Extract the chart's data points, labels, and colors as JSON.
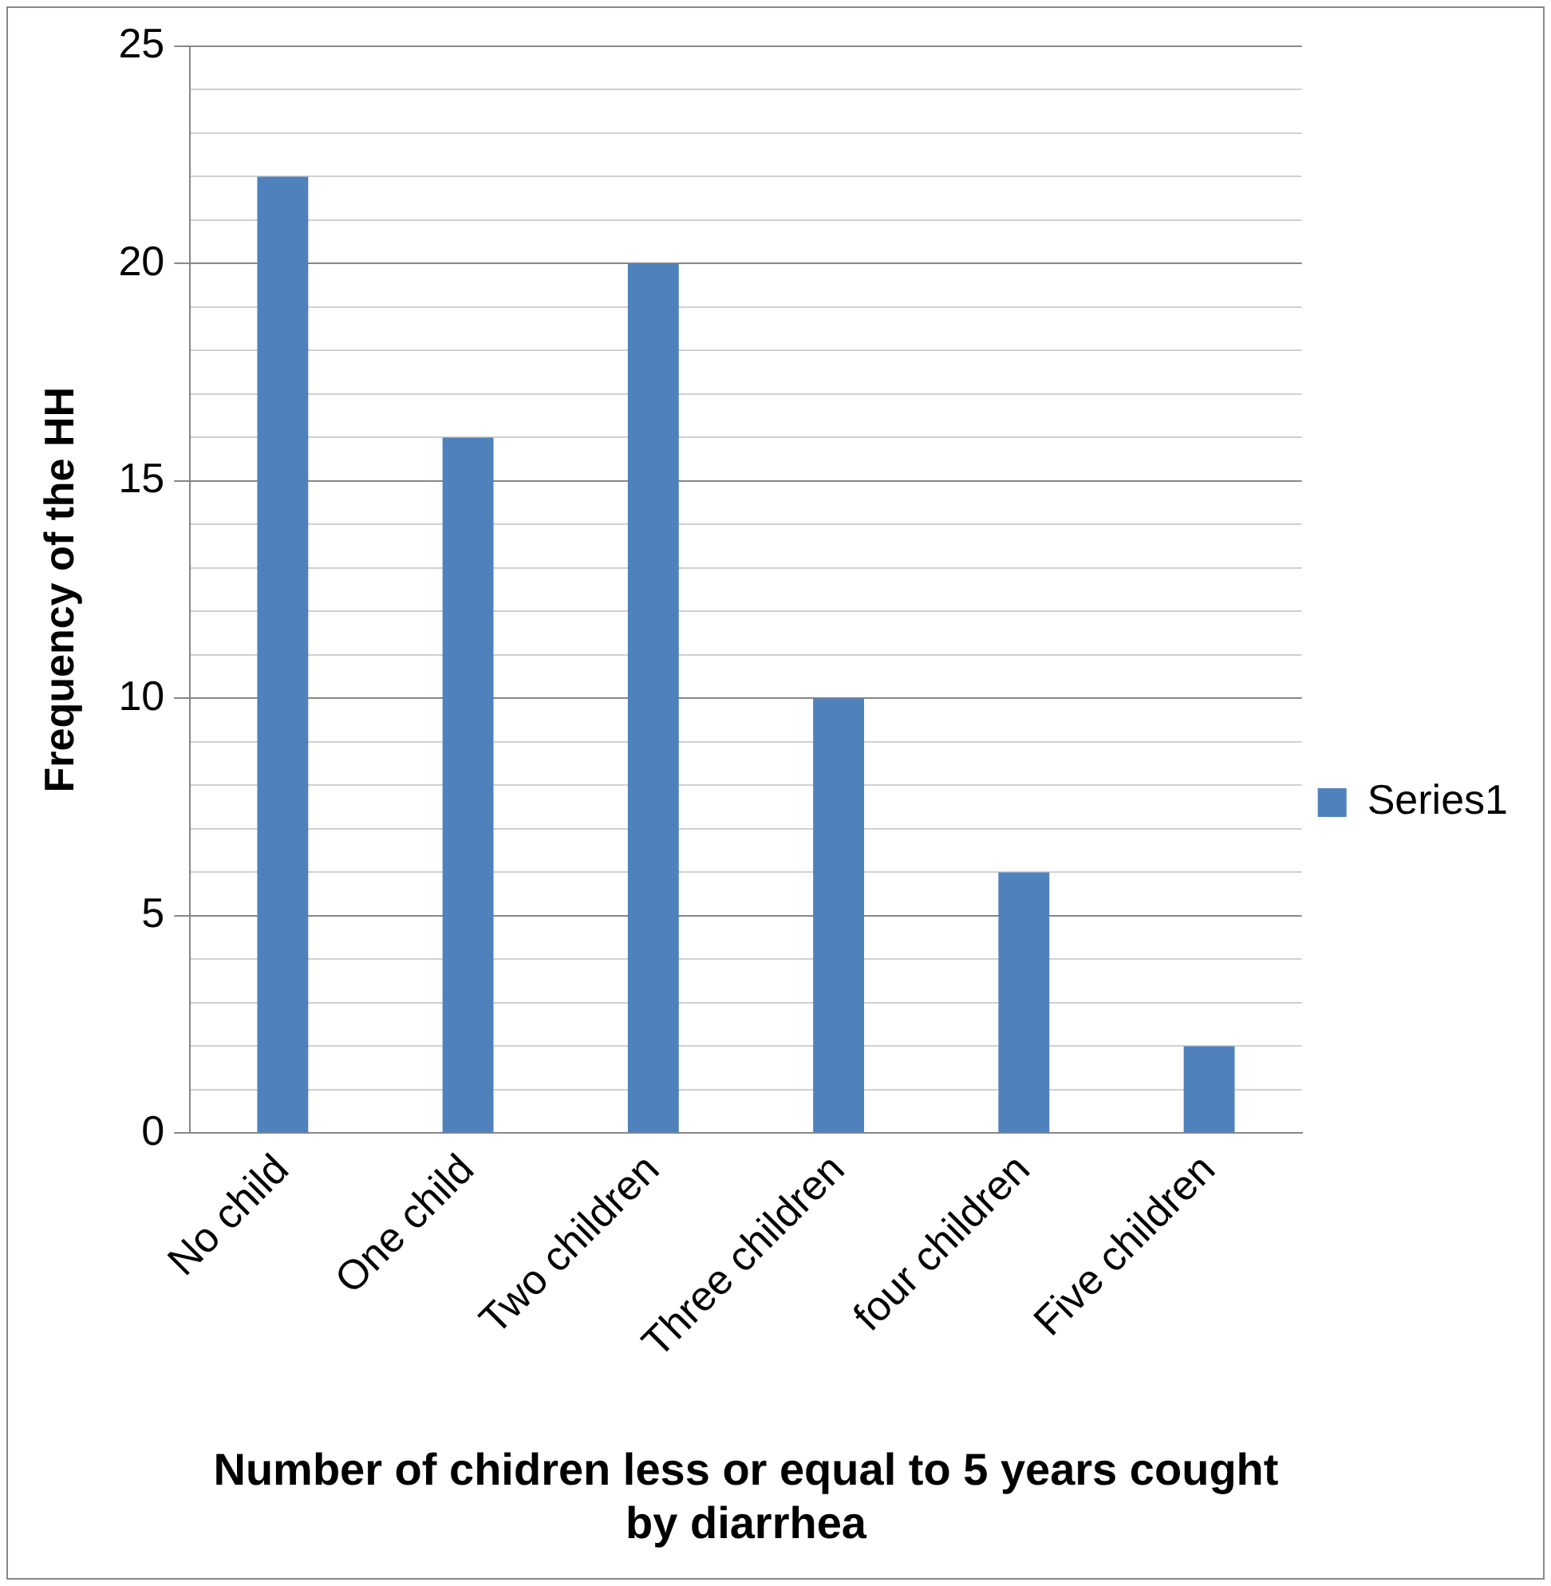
{
  "chart_data": {
    "type": "bar",
    "xlabel": "Number of chidren less or equal to 5 years cought by diarrhea",
    "ylabel": "Frequency of the HH",
    "categories": [
      "No child",
      "One child",
      "Two children",
      "Three children",
      "four children",
      "Five children"
    ],
    "series": [
      {
        "name": "Series1",
        "color": "#4f81bd",
        "values": [
          22,
          16,
          20,
          10,
          6,
          2
        ]
      }
    ],
    "ylim": [
      0,
      25
    ],
    "yticks": [
      0,
      {
        "value": 1,
        "label": null
      },
      {
        "value": 2,
        "label": null
      },
      {
        "value": 3,
        "label": null
      },
      {
        "value": 4,
        "label": null
      },
      5,
      {
        "value": 6,
        "label": null
      },
      {
        "value": 7,
        "label": null
      },
      {
        "value": 8,
        "label": null
      },
      {
        "value": 9,
        "label": null
      },
      10,
      {
        "value": 11,
        "label": null
      },
      {
        "value": 12,
        "label": null
      },
      {
        "value": 13,
        "label": null
      },
      {
        "value": 14,
        "label": null
      },
      15,
      {
        "value": 16,
        "label": null
      },
      {
        "value": 17,
        "label": null
      },
      {
        "value": 18,
        "label": null
      },
      {
        "value": 19,
        "label": null
      },
      20,
      {
        "value": 21,
        "label": null
      },
      {
        "value": 22,
        "label": null
      },
      {
        "value": 23,
        "label": null
      },
      {
        "value": 24,
        "label": null
      },
      25
    ],
    "grid": "y",
    "legend": "right"
  }
}
